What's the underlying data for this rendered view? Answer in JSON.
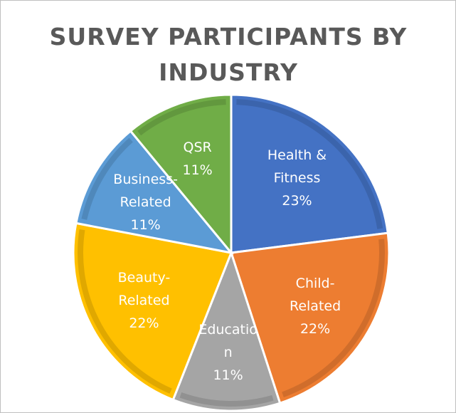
{
  "chart_data": {
    "type": "pie",
    "title": "SURVEY PARTICIPANTS BY INDUSTRY",
    "categories": [
      "Health & Fitness",
      "Child-Related",
      "Education",
      "Beauty-Related",
      "Business-Related",
      "QSR"
    ],
    "values": [
      23,
      22,
      11,
      22,
      11,
      11
    ],
    "value_labels": [
      "23%",
      "22%",
      "11%",
      "22%",
      "11%",
      "11%"
    ],
    "colors": [
      "#4472c4",
      "#ed7d31",
      "#a5a5a5",
      "#ffc000",
      "#5b9bd5",
      "#70ad47"
    ]
  }
}
